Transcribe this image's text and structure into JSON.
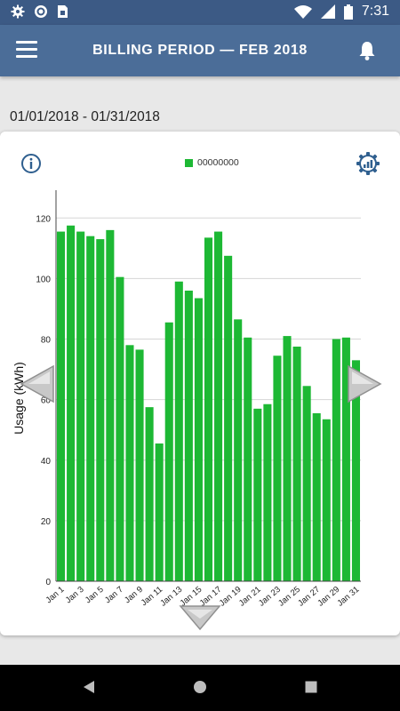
{
  "status_bar": {
    "time": "7:31",
    "left_icons": [
      "gear-icon",
      "circle-icon",
      "sim-icon"
    ],
    "right_icons": [
      "wifi-icon",
      "signal-icon",
      "battery-icon"
    ]
  },
  "app_bar": {
    "title": "BILLING PERIOD  —  FEB 2018",
    "menu_icon": "hamburger-icon",
    "bell_icon": "bell-icon",
    "color": "#4b6d98"
  },
  "period_range": "01/01/2018 - 01/31/2018",
  "chart_data": {
    "type": "bar",
    "legend": [
      "00000000"
    ],
    "ylabel": "Usage (kWh)",
    "xlabel": "",
    "ylim": [
      0,
      128
    ],
    "yticks": [
      0,
      20,
      40,
      60,
      80,
      100,
      120
    ],
    "bar_color": "#1db834",
    "grid": true,
    "categories": [
      "Jan 1",
      "Jan 2",
      "Jan 3",
      "Jan 4",
      "Jan 5",
      "Jan 6",
      "Jan 7",
      "Jan 8",
      "Jan 9",
      "Jan 10",
      "Jan 11",
      "Jan 12",
      "Jan 13",
      "Jan 14",
      "Jan 15",
      "Jan 16",
      "Jan 17",
      "Jan 18",
      "Jan 19",
      "Jan 20",
      "Jan 21",
      "Jan 22",
      "Jan 23",
      "Jan 24",
      "Jan 25",
      "Jan 26",
      "Jan 27",
      "Jan 28",
      "Jan 29",
      "Jan 30",
      "Jan 31"
    ],
    "tick_labels": [
      "Jan 1",
      "Jan 3",
      "Jan 5",
      "Jan 7",
      "Jan 9",
      "Jan 11",
      "Jan 13",
      "Jan 15",
      "Jan 17",
      "Jan 19",
      "Jan 21",
      "Jan 23",
      "Jan 25",
      "Jan 27",
      "Jan 29",
      "Jan 31"
    ],
    "values": [
      115.5,
      117.5,
      115.5,
      114,
      113,
      116,
      100.5,
      78,
      76.5,
      57.5,
      45.5,
      85.5,
      99,
      96,
      93.5,
      113.5,
      115.5,
      107.5,
      86.5,
      80.5,
      57,
      58.5,
      74.5,
      81,
      77.5,
      64.5,
      55.5,
      53.5,
      80,
      80.5,
      73
    ]
  },
  "controls": {
    "info_icon": "info-icon",
    "settings_icon": "chart-settings-icon",
    "prev_icon": "arrow-left-icon",
    "next_icon": "arrow-right-icon",
    "expand_icon": "arrow-down-icon"
  },
  "system_nav": {
    "back_icon": "back-icon",
    "home_icon": "home-icon",
    "recent_icon": "recent-icon"
  }
}
